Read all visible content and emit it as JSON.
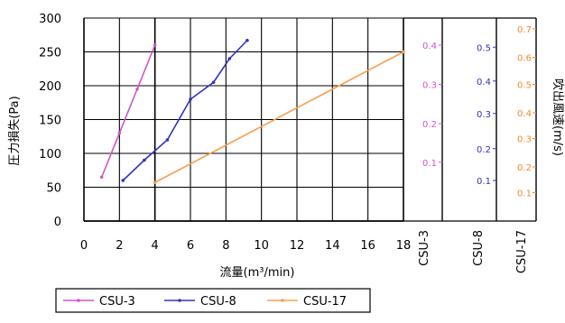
{
  "chart_data": {
    "type": "line",
    "xlabel": "流量(m³/min)",
    "ylabel": "圧力損失(Pa)",
    "y2label": "吹出風速(m/s)",
    "xlim": [
      0,
      18
    ],
    "ylim": [
      0,
      300
    ],
    "x_ticks": [
      "0",
      "2",
      "4",
      "6",
      "8",
      "10",
      "12",
      "14",
      "16",
      "18"
    ],
    "y_ticks": [
      "0",
      "50",
      "100",
      "150",
      "200",
      "250",
      "300"
    ],
    "grid": true,
    "legend_position": "bottom-left",
    "series": [
      {
        "name": "CSU-3",
        "color": "#cc55cc",
        "x": [
          1.0,
          2.0,
          3.0,
          4.0
        ],
        "y": [
          65,
          130,
          195,
          260
        ]
      },
      {
        "name": "CSU-8",
        "color": "#3333bb",
        "x": [
          2.2,
          3.4,
          4.7,
          6.0,
          7.3,
          8.2,
          9.2
        ],
        "y": [
          60,
          90,
          120,
          180,
          205,
          240,
          267
        ]
      },
      {
        "name": "CSU-17",
        "color": "#f5a050",
        "x": [
          4.0,
          18.0
        ],
        "y": [
          57,
          250
        ]
      }
    ],
    "velocity_scales": [
      {
        "name": "CSU-3",
        "color": "#cc55cc",
        "ticks": [
          {
            "label": "0.1",
            "y": 87
          },
          {
            "label": "0.2",
            "y": 144
          },
          {
            "label": "0.3",
            "y": 202
          },
          {
            "label": "0.4",
            "y": 260
          }
        ]
      },
      {
        "name": "CSU-8",
        "color": "#3333bb",
        "ticks": [
          {
            "label": "0.1",
            "y": 60
          },
          {
            "label": "0.2",
            "y": 107
          },
          {
            "label": "0.3",
            "y": 159
          },
          {
            "label": "0.4",
            "y": 207
          },
          {
            "label": "0.5",
            "y": 257
          }
        ]
      },
      {
        "name": "CSU-17",
        "color": "#f08a30",
        "ticks": [
          {
            "label": "0.1",
            "y": 42
          },
          {
            "label": "0.2",
            "y": 80
          },
          {
            "label": "0.3",
            "y": 122
          },
          {
            "label": "0.4",
            "y": 160
          },
          {
            "label": "0.5",
            "y": 202
          },
          {
            "label": "0.6",
            "y": 242
          },
          {
            "label": "0.7",
            "y": 284
          }
        ]
      }
    ]
  }
}
